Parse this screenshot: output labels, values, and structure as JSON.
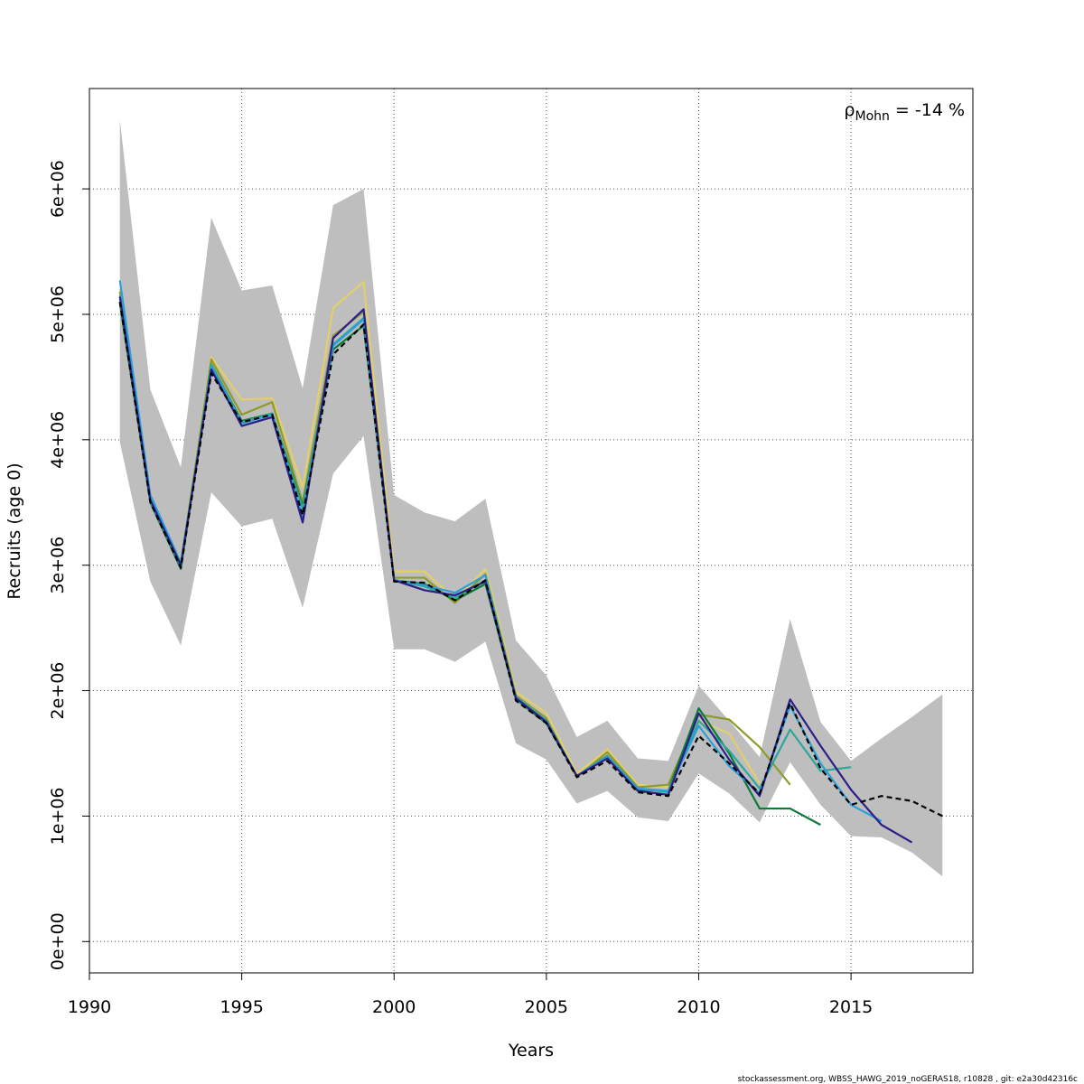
{
  "chart_data": {
    "type": "line",
    "title": "",
    "xlabel": "Years",
    "ylabel": "Recruits (age 0)",
    "xlim": [
      1990,
      2019
    ],
    "ylim": [
      -250000,
      6800000
    ],
    "x_ticks": [
      1990,
      1995,
      2000,
      2005,
      2010,
      2015
    ],
    "x_tick_labels": [
      "1990",
      "1995",
      "2000",
      "2005",
      "2010",
      "2015"
    ],
    "y_ticks": [
      0,
      1000000,
      2000000,
      3000000,
      4000000,
      5000000,
      6000000
    ],
    "y_tick_labels": [
      "0e+00",
      "1e+06",
      "2e+06",
      "3e+06",
      "4e+06",
      "5e+06",
      "6e+06"
    ],
    "grid": true,
    "annotation": {
      "rho": "ρ",
      "subscript": "Mohn",
      "value": " = -14 %"
    },
    "footer": "stockassessment.org, WBSS_HAWG_2019_noGERAS18, r10828 , git: e2a30d42316c",
    "confidence_band": {
      "x": [
        1991,
        1992,
        1993,
        1994,
        1995,
        1996,
        1997,
        1998,
        1999,
        2000,
        2001,
        2002,
        2003,
        2004,
        2005,
        2006,
        2007,
        2008,
        2009,
        2010,
        2011,
        2012,
        2013,
        2014,
        2015,
        2016,
        2017,
        2018
      ],
      "upper": [
        6550000,
        4400000,
        3780000,
        5770000,
        5190000,
        5230000,
        4410000,
        5870000,
        6000000,
        3560000,
        3420000,
        3350000,
        3530000,
        2400000,
        2120000,
        1630000,
        1760000,
        1460000,
        1440000,
        2040000,
        1760000,
        1470000,
        2570000,
        1750000,
        1440000,
        1620000,
        1790000,
        1970000
      ],
      "lower": [
        3980000,
        2870000,
        2360000,
        3580000,
        3310000,
        3370000,
        2660000,
        3730000,
        4030000,
        2330000,
        2330000,
        2230000,
        2390000,
        1580000,
        1450000,
        1100000,
        1200000,
        990000,
        960000,
        1340000,
        1180000,
        950000,
        1430000,
        1090000,
        840000,
        830000,
        710000,
        520000
      ],
      "color": "#bebebe"
    },
    "series": [
      {
        "color": "#000000",
        "dashed": true,
        "x": [
          1991,
          1992,
          1993,
          1994,
          1995,
          1996,
          1997,
          1998,
          1999,
          2000,
          2001,
          2002,
          2003,
          2004,
          2005,
          2006,
          2007,
          2008,
          2009,
          2010,
          2011,
          2012,
          2013,
          2014,
          2015,
          2016,
          2017,
          2018
        ],
        "values": [
          5100000,
          3500000,
          2980000,
          4530000,
          4140000,
          4200000,
          3400000,
          4680000,
          4920000,
          2870000,
          2860000,
          2720000,
          2880000,
          1920000,
          1740000,
          1310000,
          1440000,
          1190000,
          1160000,
          1640000,
          1420000,
          1180000,
          1900000,
          1380000,
          1090000,
          1160000,
          1120000,
          1000000
        ]
      },
      {
        "color": "#2c1f8a",
        "dashed": false,
        "x": [
          1991,
          1992,
          1993,
          1994,
          1995,
          1996,
          1997,
          1998,
          1999,
          2000,
          2001,
          2002,
          2003,
          2004,
          2005,
          2006,
          2007,
          2008,
          2009,
          2010,
          2011,
          2012,
          2013,
          2014,
          2015,
          2016,
          2017
        ],
        "values": [
          5140000,
          3520000,
          3000000,
          4560000,
          4110000,
          4180000,
          3340000,
          4810000,
          5040000,
          2880000,
          2800000,
          2760000,
          2870000,
          1940000,
          1750000,
          1320000,
          1460000,
          1200000,
          1170000,
          1820000,
          1450000,
          1160000,
          1930000,
          1560000,
          1210000,
          930000,
          790000
        ]
      },
      {
        "color": "#2b9fd9",
        "dashed": false,
        "x": [
          1991,
          1992,
          1993,
          1994,
          1995,
          1996,
          1997,
          1998,
          1999,
          2000,
          2001,
          2002,
          2003,
          2004,
          2005,
          2006,
          2007,
          2008,
          2009,
          2010,
          2011,
          2012,
          2013,
          2014,
          2015,
          2016
        ],
        "values": [
          5270000,
          3560000,
          3020000,
          4580000,
          4130000,
          4200000,
          3380000,
          4750000,
          4960000,
          2880000,
          2840000,
          2780000,
          2920000,
          1930000,
          1760000,
          1320000,
          1470000,
          1220000,
          1200000,
          1720000,
          1400000,
          1180000,
          1880000,
          1420000,
          1090000,
          960000
        ]
      },
      {
        "color": "#2ca89a",
        "dashed": false,
        "x": [
          1991,
          1992,
          1993,
          1994,
          1995,
          1996,
          1997,
          1998,
          1999,
          2000,
          2001,
          2002,
          2003,
          2004,
          2005,
          2006,
          2007,
          2008,
          2009,
          2010,
          2011,
          2012,
          2013,
          2014,
          2015
        ],
        "values": [
          5150000,
          3510000,
          2990000,
          4600000,
          4140000,
          4210000,
          3450000,
          4760000,
          4970000,
          2880000,
          2830000,
          2740000,
          2880000,
          1950000,
          1760000,
          1320000,
          1480000,
          1220000,
          1190000,
          1760000,
          1520000,
          1220000,
          1690000,
          1360000,
          1390000
        ]
      },
      {
        "color": "#0e7a3a",
        "dashed": false,
        "x": [
          1991,
          1992,
          1993,
          1994,
          1995,
          1996,
          1997,
          1998,
          1999,
          2000,
          2001,
          2002,
          2003,
          2004,
          2005,
          2006,
          2007,
          2008,
          2009,
          2010,
          2011,
          2012,
          2013,
          2014
        ],
        "values": [
          5090000,
          3500000,
          2970000,
          4600000,
          4150000,
          4210000,
          3470000,
          4720000,
          4910000,
          2880000,
          2850000,
          2720000,
          2850000,
          1930000,
          1740000,
          1320000,
          1480000,
          1210000,
          1200000,
          1860000,
          1500000,
          1060000,
          1060000,
          930000
        ]
      },
      {
        "color": "#8f9a2a",
        "dashed": false,
        "x": [
          1991,
          1992,
          1993,
          1994,
          1995,
          1996,
          1997,
          1998,
          1999,
          2000,
          2001,
          2002,
          2003,
          2004,
          2005,
          2006,
          2007,
          2008,
          2009,
          2010,
          2011,
          2012,
          2013
        ],
        "values": [
          5180000,
          3520000,
          3010000,
          4640000,
          4200000,
          4300000,
          3500000,
          4830000,
          5020000,
          2900000,
          2900000,
          2700000,
          2930000,
          1960000,
          1780000,
          1310000,
          1510000,
          1230000,
          1250000,
          1810000,
          1770000,
          1550000,
          1250000
        ]
      },
      {
        "color": "#e3cf6a",
        "dashed": false,
        "x": [
          1991,
          1992,
          1993,
          1994,
          1995,
          1996,
          1997,
          1998,
          1999,
          2000,
          2001,
          2002,
          2003,
          2004,
          2005,
          2006,
          2007,
          2008,
          2009,
          2010,
          2011,
          2012
        ],
        "values": [
          5200000,
          3530000,
          3030000,
          4660000,
          4320000,
          4330000,
          3620000,
          5050000,
          5260000,
          2950000,
          2950000,
          2730000,
          2970000,
          1990000,
          1820000,
          1340000,
          1530000,
          1250000,
          1230000,
          1760000,
          1660000,
          1260000
        ]
      }
    ]
  }
}
